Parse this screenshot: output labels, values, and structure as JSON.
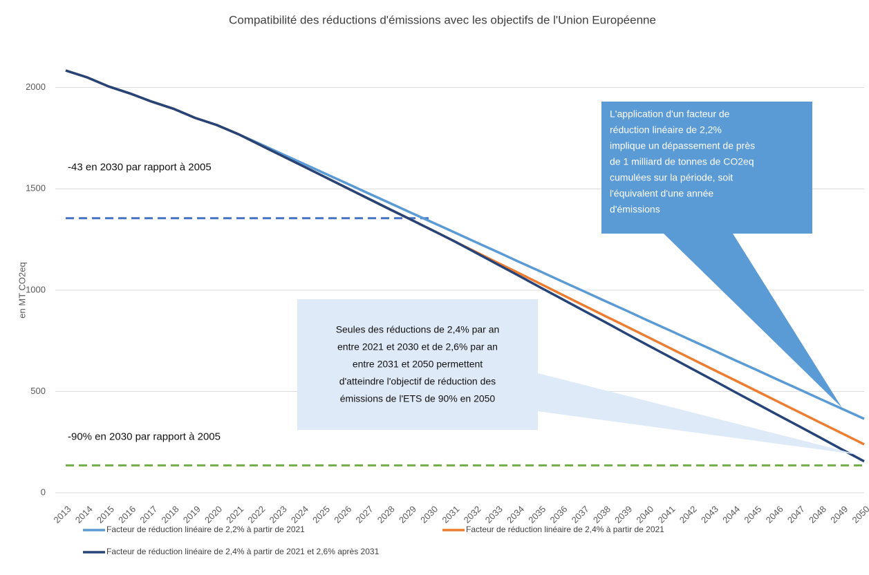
{
  "chart_data": {
    "type": "line",
    "title": "Compatibilité des réductions d'émissions avec les objectifs de l'Union Européenne",
    "y_label": "en MT CO2eq",
    "categories": [
      "2013",
      "2014",
      "2015",
      "2016",
      "2017",
      "2018",
      "2019",
      "2020",
      "2021",
      "2022",
      "2023",
      "2024",
      "2025",
      "2026",
      "2027",
      "2028",
      "2029",
      "2030",
      "2031",
      "2032",
      "2033",
      "2034",
      "2035",
      "2036",
      "2037",
      "2038",
      "2039",
      "2040",
      "2041",
      "2042",
      "2043",
      "2044",
      "2045",
      "2046",
      "2047",
      "2048",
      "2049",
      "2050"
    ],
    "ylim": [
      0,
      2200
    ],
    "yticks": [
      0,
      500,
      1000,
      1500,
      2000
    ],
    "grid": true,
    "series": [
      {
        "name": "Facteur de réduction linéaire de 2,2% à partir de 2021",
        "color": "#5b9bd5",
        "values": [
          2084,
          2050,
          2005,
          1970,
          1930,
          1895,
          1850,
          1815,
          1770,
          1722,
          1673,
          1625,
          1576,
          1528,
          1479,
          1431,
          1382,
          1334,
          1286,
          1237,
          1189,
          1140,
          1092,
          1043,
          995,
          946,
          898,
          849,
          801,
          752,
          704,
          655,
          607,
          558,
          510,
          461,
          413,
          365
        ]
      },
      {
        "name": "Facteur de réduction linéaire de 2,4% à partir de 2021",
        "color": "#ed7d31",
        "values": [
          2084,
          2050,
          2005,
          1970,
          1930,
          1895,
          1850,
          1815,
          1770,
          1717,
          1664,
          1612,
          1559,
          1506,
          1453,
          1400,
          1348,
          1295,
          1242,
          1189,
          1136,
          1084,
          1031,
          978,
          925,
          872,
          820,
          767,
          714,
          661,
          608,
          556,
          503,
          450,
          397,
          344,
          292,
          239
        ]
      },
      {
        "name": "Facteur de réduction linéaire de 2,4% à partir de 2021 et 2,6% après 2031",
        "color": "#264478",
        "values": [
          2084,
          2050,
          2005,
          1970,
          1930,
          1895,
          1850,
          1815,
          1770,
          1717,
          1664,
          1612,
          1559,
          1506,
          1453,
          1400,
          1348,
          1295,
          1242,
          1185,
          1128,
          1071,
          1013,
          956,
          899,
          842,
          784,
          727,
          670,
          613,
          556,
          498,
          441,
          384,
          327,
          270,
          212,
          155
        ]
      }
    ],
    "reference_lines": [
      {
        "label": "-43 en 2030 par rapport à 2005",
        "value": 1355,
        "color": "#4472c4",
        "x_end": "2030"
      },
      {
        "label": "-90% en 2030 par rapport à 2005",
        "value": 135,
        "color": "#70ad47",
        "x_end": "2050"
      }
    ],
    "callouts": [
      {
        "lines": [
          "L'application d'un facteur de",
          "réduction linéaire de 2,2%",
          "implique un dépassement de près",
          "de 1 milliard de tonnes de CO2eq",
          "cumulées sur la période, soit",
          "l'équivalent d'une année",
          "d'émissions"
        ],
        "color": "#5b9bd5"
      },
      {
        "lines": [
          "Seules des réductions de 2,4% par an",
          "entre 2021 et 2030 et de 2,6% par an",
          "entre 2031 et 2050 permettent",
          "d'atteindre l'objectif de réduction des",
          "émissions de l'ETS de 90% en 2050"
        ],
        "color": "#deeaf7"
      }
    ]
  }
}
